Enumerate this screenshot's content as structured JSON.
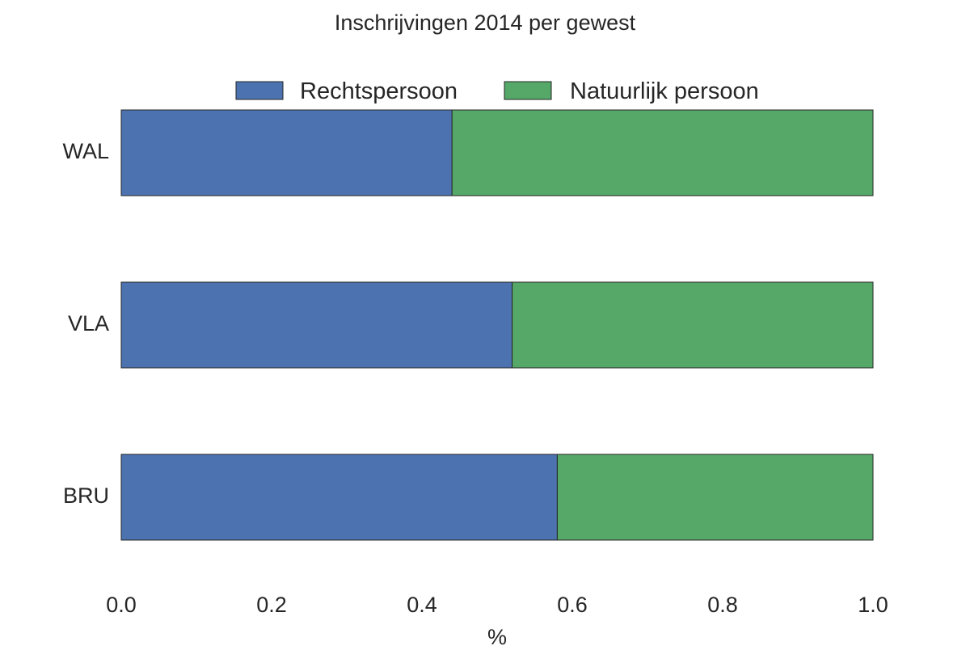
{
  "chart_data": {
    "type": "bar",
    "orientation": "horizontal",
    "stacked": true,
    "title": "Inschrijvingen 2014 per gewest",
    "xlabel": "%",
    "ylabel": "",
    "xlim": [
      0.0,
      1.0
    ],
    "xticks": [
      "0.0",
      "0.2",
      "0.4",
      "0.6",
      "0.8",
      "1.0"
    ],
    "categories": [
      "WAL",
      "VLA",
      "BRU"
    ],
    "series": [
      {
        "name": "Rechtspersoon",
        "color": "#4C72B0",
        "values": [
          0.44,
          0.52,
          0.58
        ]
      },
      {
        "name": "Natuurlijk persoon",
        "color": "#55A868",
        "values": [
          0.56,
          0.48,
          0.42
        ]
      }
    ],
    "legend": "top-center",
    "grid": false
  }
}
